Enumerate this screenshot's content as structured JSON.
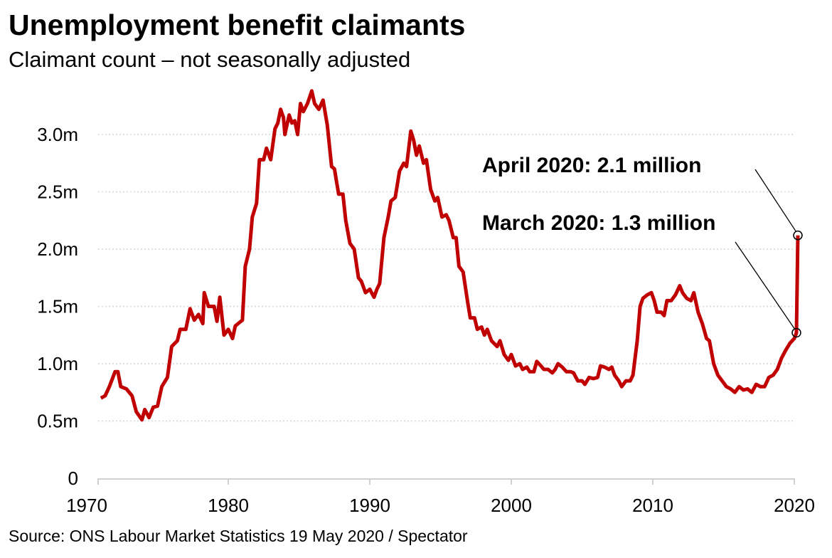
{
  "title": "Unemployment benefit claimants",
  "subtitle": "Claimant count – not seasonally adjusted",
  "source": "Source: ONS Labour Market Statistics 19 May 2020 / Spectator",
  "chart_data": {
    "type": "line",
    "title": "Unemployment benefit claimants",
    "subtitle": "Claimant count – not seasonally adjusted",
    "xlabel": "",
    "ylabel": "",
    "xlim": [
      1970,
      2020.5
    ],
    "ylim": [
      0,
      3.4
    ],
    "x_ticks": [
      1970,
      1980,
      1990,
      2000,
      2010,
      2020
    ],
    "x_tick_labels": [
      "1970",
      "1980",
      "1990",
      "2000",
      "2010",
      "2020"
    ],
    "y_ticks": [
      0,
      0.5,
      1.0,
      1.5,
      2.0,
      2.5,
      3.0
    ],
    "y_tick_labels": [
      "0",
      "0.5m",
      "1.0m",
      "1.5m",
      "2.0m",
      "2.5m",
      "3.0m"
    ],
    "grid": "horizontal dotted",
    "legend": "none",
    "color": "#c00000",
    "series": [
      {
        "x": [
          1971.0,
          1971.3,
          1971.6,
          1972.0,
          1972.2,
          1972.4,
          1972.8,
          1973.2,
          1973.5,
          1973.9,
          1974.1,
          1974.4,
          1974.7,
          1975.0,
          1975.3,
          1975.7,
          1976.0,
          1976.4,
          1976.6,
          1977.0,
          1977.3,
          1977.6,
          1977.9,
          1978.2,
          1978.3,
          1978.6,
          1979.0,
          1979.2,
          1979.4,
          1979.7,
          1980.0,
          1980.3,
          1980.5,
          1980.8,
          1981.0,
          1981.2,
          1981.5,
          1981.7,
          1982.0,
          1982.2,
          1982.5,
          1982.7,
          1983.0,
          1983.3,
          1983.5,
          1983.7,
          1983.9,
          1984.0,
          1984.3,
          1984.5,
          1984.7,
          1984.9,
          1985.1,
          1985.3,
          1985.6,
          1985.9,
          1986.1,
          1986.4,
          1986.7,
          1987.0,
          1987.3,
          1987.5,
          1987.8,
          1988.1,
          1988.3,
          1988.6,
          1988.9,
          1989.2,
          1989.4,
          1989.7,
          1990.0,
          1990.3,
          1990.5,
          1990.7,
          1991.0,
          1991.3,
          1991.5,
          1991.8,
          1992.1,
          1992.4,
          1992.6,
          1992.9,
          1993.1,
          1993.3,
          1993.5,
          1993.8,
          1994.0,
          1994.3,
          1994.6,
          1994.8,
          1995.1,
          1995.4,
          1995.6,
          1995.9,
          1996.1,
          1996.3,
          1996.6,
          1996.9,
          1997.1,
          1997.4,
          1997.6,
          1997.9,
          1998.1,
          1998.3,
          1998.6,
          1999.0,
          1999.2,
          1999.5,
          1999.8,
          2000.0,
          2000.3,
          2000.6,
          2000.8,
          2001.1,
          2001.3,
          2001.6,
          2001.8,
          2002.1,
          2002.3,
          2002.6,
          2002.9,
          2003.1,
          2003.3,
          2003.6,
          2003.9,
          2004.2,
          2004.4,
          2004.7,
          2005.0,
          2005.2,
          2005.5,
          2005.8,
          2006.1,
          2006.3,
          2006.6,
          2006.9,
          2007.1,
          2007.3,
          2007.6,
          2007.8,
          2008.1,
          2008.4,
          2008.6,
          2008.9,
          2009.1,
          2009.3,
          2009.6,
          2009.9,
          2010.1,
          2010.3,
          2010.6,
          2010.8,
          2011.0,
          2011.3,
          2011.6,
          2011.9,
          2012.1,
          2012.4,
          2012.7,
          2012.9,
          2013.2,
          2013.5,
          2013.8,
          2014.0,
          2014.3,
          2014.6,
          2014.9,
          2015.2,
          2015.5,
          2015.8,
          2016.1,
          2016.4,
          2016.7,
          2017.0,
          2017.3,
          2017.6,
          2017.9,
          2018.2,
          2018.5,
          2018.8,
          2019.1,
          2019.4,
          2019.7,
          2020.0,
          2020.15,
          2020.25
        ],
        "y": [
          0.7,
          0.72,
          0.8,
          0.93,
          0.93,
          0.8,
          0.78,
          0.72,
          0.58,
          0.51,
          0.6,
          0.53,
          0.62,
          0.63,
          0.8,
          0.88,
          1.15,
          1.2,
          1.3,
          1.3,
          1.48,
          1.38,
          1.43,
          1.35,
          1.62,
          1.5,
          1.5,
          1.37,
          1.58,
          1.25,
          1.3,
          1.22,
          1.33,
          1.36,
          1.38,
          1.85,
          2.0,
          2.28,
          2.4,
          2.78,
          2.78,
          2.88,
          2.78,
          3.05,
          3.1,
          3.22,
          3.15,
          3.0,
          3.17,
          3.1,
          3.12,
          3.0,
          3.27,
          3.2,
          3.27,
          3.38,
          3.27,
          3.22,
          3.3,
          3.08,
          2.72,
          2.7,
          2.48,
          2.48,
          2.25,
          2.05,
          2.0,
          1.75,
          1.72,
          1.62,
          1.65,
          1.58,
          1.65,
          1.7,
          2.1,
          2.28,
          2.42,
          2.45,
          2.68,
          2.75,
          2.72,
          3.03,
          2.95,
          2.82,
          2.9,
          2.75,
          2.78,
          2.52,
          2.42,
          2.45,
          2.28,
          2.3,
          2.25,
          2.1,
          2.1,
          1.85,
          1.8,
          1.55,
          1.4,
          1.4,
          1.3,
          1.32,
          1.25,
          1.3,
          1.2,
          1.15,
          1.2,
          1.08,
          1.03,
          1.08,
          0.98,
          1.0,
          0.95,
          0.97,
          0.93,
          0.93,
          1.02,
          0.98,
          0.95,
          0.95,
          0.92,
          0.95,
          1.0,
          0.97,
          0.93,
          0.93,
          0.92,
          0.85,
          0.85,
          0.82,
          0.88,
          0.87,
          0.88,
          0.98,
          0.97,
          0.95,
          0.97,
          0.9,
          0.85,
          0.8,
          0.85,
          0.85,
          0.9,
          1.2,
          1.5,
          1.57,
          1.6,
          1.62,
          1.55,
          1.45,
          1.45,
          1.42,
          1.55,
          1.55,
          1.6,
          1.68,
          1.62,
          1.57,
          1.55,
          1.62,
          1.45,
          1.35,
          1.22,
          1.2,
          1.0,
          0.9,
          0.85,
          0.8,
          0.78,
          0.75,
          0.8,
          0.77,
          0.78,
          0.75,
          0.82,
          0.8,
          0.8,
          0.88,
          0.9,
          0.95,
          1.05,
          1.12,
          1.18,
          1.22,
          1.27,
          2.12
        ]
      }
    ],
    "annotations": [
      {
        "text": "April 2020: 2.1 million",
        "x": 2020.25,
        "y": 2.12
      },
      {
        "text": "March 2020: 1.3 million",
        "x": 2020.15,
        "y": 1.27
      }
    ]
  }
}
